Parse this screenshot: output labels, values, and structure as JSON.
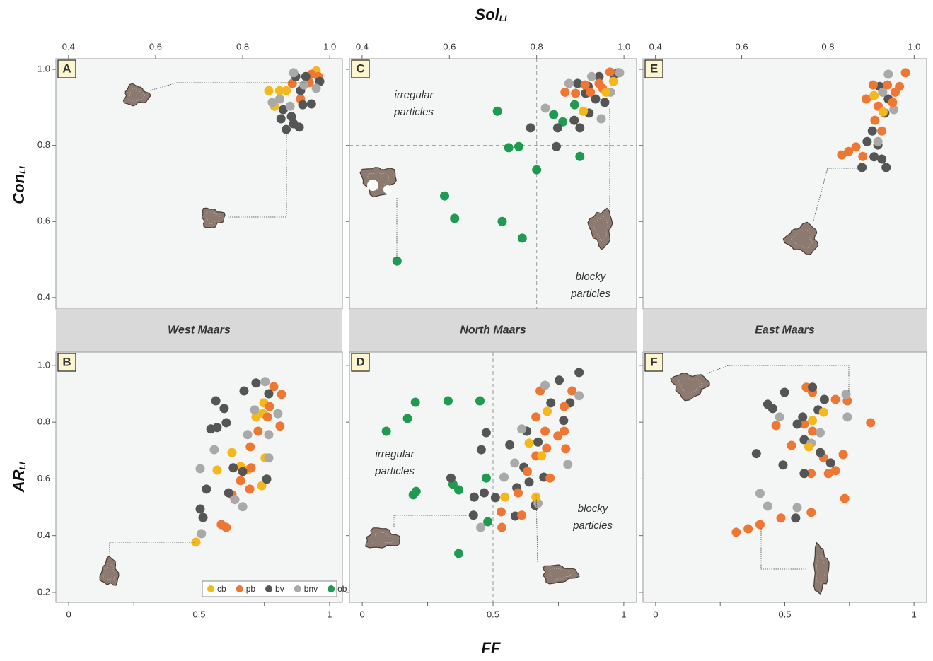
{
  "figure": {
    "x_top": {
      "text": "Sol",
      "sub": "LI"
    },
    "y_top": {
      "text": "Con",
      "sub": "LI"
    },
    "y_bottom": {
      "text": "AR",
      "sub": "LI"
    },
    "x_bottom": "FF"
  },
  "chart_data": [
    {
      "type": "scatter",
      "label": "A",
      "x_axis": "top",
      "y_tick_labels": true,
      "xlim": [
        0.371,
        1.029
      ],
      "ylim": [
        0.37,
        1.028
      ],
      "xticks": [
        0.4,
        0.6,
        0.8,
        {
          "value": 1,
          "label": "1.0"
        }
      ],
      "yticks": [
        0.4,
        0.6,
        0.8,
        {
          "value": 1,
          "label": "1.0"
        }
      ],
      "series": [
        {
          "name": "cb",
          "color": "#f4b81c",
          "x": [
            0.885,
            0.86,
            0.873,
            0.969,
            0.9
          ],
          "values": [
            0.944,
            0.944,
            0.903,
            0.996,
            0.944
          ]
        },
        {
          "name": "pb",
          "color": "#ee7734",
          "x": [
            0.914,
            0.958,
            0.933,
            0.974,
            0.953
          ],
          "values": [
            0.963,
            0.987,
            0.922,
            0.981,
            0.965
          ]
        },
        {
          "name": "bv",
          "color": "#555555",
          "x": [
            0.888,
            0.9,
            0.93,
            0.912,
            0.958,
            0.933,
            0.945,
            0.977,
            0.893,
            0.917,
            0.938,
            0.922
          ],
          "values": [
            0.87,
            0.842,
            0.848,
            0.876,
            0.909,
            0.944,
            0.981,
            0.968,
            0.894,
            0.857,
            0.907,
            0.981
          ]
        },
        {
          "name": "bnv",
          "color": "#a9a9a9",
          "x": [
            0.868,
            0.909,
            0.885,
            0.969,
            0.941,
            0.917
          ],
          "values": [
            0.913,
            0.903,
            0.922,
            0.95,
            0.959,
            0.991
          ]
        }
      ]
    },
    {
      "type": "scatter",
      "label": "C",
      "x_axis": "top",
      "y_tick_labels": false,
      "xlim": [
        0.371,
        1.029
      ],
      "ylim": [
        0.37,
        1.028
      ],
      "xticks": [
        0.4,
        0.6,
        0.8,
        {
          "value": 1,
          "label": "1.0"
        }
      ],
      "yticks": [
        0.4,
        0.6,
        0.8,
        {
          "value": 1,
          "label": "1.0"
        }
      ],
      "ref_lines": {
        "x": [
          0.8
        ],
        "y": [
          0.8
        ]
      },
      "annotations": [
        [
          "irregular",
          "particles"
        ],
        [
          "blocky",
          "particles"
        ]
      ],
      "series": [
        {
          "name": "ob",
          "color": "#1e9b50",
          "x": [
            0.48,
            0.589,
            0.612,
            0.71,
            0.736,
            0.759,
            0.8,
            0.721,
            0.767,
            0.899,
            0.86,
            0.887,
            0.839
          ],
          "values": [
            0.496,
            0.667,
            0.608,
            0.89,
            0.794,
            0.797,
            0.736,
            0.6,
            0.556,
            0.771,
            0.862,
            0.907,
            0.881
          ]
        },
        {
          "name": "bv",
          "color": "#555555",
          "x": [
            0.786,
            0.845,
            0.848,
            0.899,
            0.886,
            0.92,
            0.894,
            0.935,
            0.956,
            0.977,
            0.918,
            0.943,
            0.987,
            0.912
          ],
          "values": [
            0.846,
            0.797,
            0.846,
            0.846,
            0.866,
            0.885,
            0.963,
            0.922,
            0.913,
            0.987,
            0.955,
            0.981,
            0.991,
            0.937
          ]
        },
        {
          "name": "bnv",
          "color": "#a9a9a9",
          "x": [
            0.82,
            0.948,
            0.874,
            0.926,
            0.969,
            0.99
          ],
          "values": [
            0.898,
            0.87,
            0.963,
            0.981,
            0.94,
            0.991
          ]
        },
        {
          "name": "pb",
          "color": "#ee7734",
          "x": [
            0.865,
            0.889,
            0.923,
            0.943,
            0.968,
            0.951,
            0.911
          ],
          "values": [
            0.94,
            0.937,
            0.94,
            0.963,
            0.993,
            0.95,
            0.959
          ]
        },
        {
          "name": "cb",
          "color": "#f4b81c",
          "x": [
            0.907,
            0.976,
            0.959
          ],
          "values": [
            0.89,
            0.968,
            0.94
          ]
        }
      ]
    },
    {
      "type": "scatter",
      "label": "E",
      "x_axis": "top",
      "y_tick_labels": false,
      "xlim": [
        0.371,
        1.029
      ],
      "ylim": [
        0.37,
        1.028
      ],
      "xticks": [
        0.4,
        0.6,
        0.8,
        {
          "value": 1,
          "label": "1.0"
        }
      ],
      "yticks": [
        0.4,
        0.6,
        0.8,
        {
          "value": 1,
          "label": "1.0"
        }
      ],
      "series": [
        {
          "name": "bv",
          "color": "#555555",
          "x": [
            0.879,
            0.935,
            0.903,
            0.916,
            0.932,
            0.92,
            0.94,
            0.891,
            0.907,
            0.925
          ],
          "values": [
            0.742,
            0.742,
            0.838,
            0.801,
            0.885,
            0.955,
            0.922,
            0.81,
            0.77,
            0.764
          ]
        },
        {
          "name": "bnv",
          "color": "#a9a9a9",
          "x": [
            0.916,
            0.953,
            0.927,
            0.94
          ],
          "values": [
            0.81,
            0.894,
            0.94,
            0.987
          ]
        },
        {
          "name": "pb",
          "color": "#ee7734",
          "x": [
            0.832,
            0.848,
            0.865,
            0.881,
            0.889,
            0.905,
            0.938,
            0.956,
            0.98,
            0.909,
            0.925,
            0.95,
            0.966,
            0.917
          ],
          "values": [
            0.775,
            0.784,
            0.796,
            0.771,
            0.922,
            0.959,
            0.959,
            0.94,
            0.991,
            0.866,
            0.838,
            0.913,
            0.955,
            0.903
          ]
        },
        {
          "name": "cb",
          "color": "#f4b81c",
          "x": [
            0.928,
            0.907
          ],
          "values": [
            0.888,
            0.931
          ]
        }
      ]
    },
    {
      "type": "scatter",
      "label": "B",
      "x_axis": "bottom",
      "y_tick_labels": true,
      "strip": "West Maars",
      "legend": "bottom-right",
      "xlim": [
        -0.049,
        1.049
      ],
      "ylim": [
        0.165,
        1.047
      ],
      "xticks": [
        0,
        0.5,
        1
      ],
      "xminor": [
        0.25,
        0.75
      ],
      "yticks": [
        0.2,
        0.4,
        0.6,
        0.8,
        {
          "value": 1,
          "label": "1.0"
        }
      ],
      "series": [
        {
          "name": "cb",
          "color": "#f4b81c",
          "x": [
            0.488,
            0.569,
            0.659,
            0.686,
            0.74,
            0.753,
            0.745,
            0.748,
            0.718,
            0.626
          ],
          "values": [
            0.377,
            0.631,
            0.644,
            0.631,
            0.576,
            0.674,
            0.83,
            0.868,
            0.818,
            0.693
          ]
        },
        {
          "name": "pb",
          "color": "#ee7734",
          "x": [
            0.585,
            0.604,
            0.626,
            0.659,
            0.696,
            0.699,
            0.786,
            0.816,
            0.81,
            0.762,
            0.77,
            0.694,
            0.726
          ],
          "values": [
            0.439,
            0.429,
            0.544,
            0.594,
            0.713,
            0.639,
            0.925,
            0.898,
            0.786,
            0.818,
            0.855,
            0.564,
            0.768
          ]
        },
        {
          "name": "bv",
          "color": "#555555",
          "x": [
            0.504,
            0.515,
            0.528,
            0.545,
            0.569,
            0.564,
            0.596,
            0.604,
            0.613,
            0.631,
            0.672,
            0.718,
            0.767,
            0.759,
            0.667
          ],
          "values": [
            0.494,
            0.464,
            0.564,
            0.776,
            0.781,
            0.875,
            0.848,
            0.798,
            0.551,
            0.639,
            0.91,
            0.938,
            0.9,
            0.599,
            0.626
          ]
        },
        {
          "name": "bnv",
          "color": "#a9a9a9",
          "x": [
            0.504,
            0.509,
            0.558,
            0.637,
            0.667,
            0.686,
            0.753,
            0.767,
            0.802,
            0.767,
            0.713
          ],
          "values": [
            0.636,
            0.407,
            0.703,
            0.527,
            0.502,
            0.756,
            0.943,
            0.756,
            0.83,
            0.674,
            0.843
          ]
        },
        {
          "name": "ob",
          "color": "#1e9b50",
          "x": [],
          "values": []
        }
      ]
    },
    {
      "type": "scatter",
      "label": "D",
      "x_axis": "bottom",
      "y_tick_labels": false,
      "strip": "North Maars",
      "xlim": [
        -0.049,
        1.049
      ],
      "ylim": [
        0.165,
        1.047
      ],
      "xticks": [
        0,
        0.5,
        1
      ],
      "xminor": [
        0.25,
        0.75
      ],
      "yticks": [
        0.2,
        0.4,
        0.6,
        0.8,
        {
          "value": 1,
          "label": "1.0"
        }
      ],
      "ref_lines": {
        "x": [
          0.5
        ],
        "y": []
      },
      "annotations": [
        [
          "irregular",
          "particles"
        ],
        [
          "blocky",
          "particles"
        ]
      ],
      "series": [
        {
          "name": "ob",
          "color": "#1e9b50",
          "x": [
            0.092,
            0.173,
            0.203,
            0.328,
            0.45,
            0.195,
            0.206,
            0.347,
            0.369,
            0.474,
            0.48,
            0.369
          ],
          "values": [
            0.768,
            0.813,
            0.87,
            0.875,
            0.875,
            0.544,
            0.556,
            0.581,
            0.561,
            0.603,
            0.449,
            0.337
          ]
        },
        {
          "name": "bv",
          "color": "#555555",
          "x": [
            0.339,
            0.428,
            0.455,
            0.474,
            0.466,
            0.425,
            0.509,
            0.564,
            0.591,
            0.618,
            0.638,
            0.672,
            0.694,
            0.721,
            0.753,
            0.77,
            0.829,
            0.794,
            0.629,
            0.661,
            0.585
          ],
          "values": [
            0.603,
            0.536,
            0.703,
            0.763,
            0.551,
            0.472,
            0.534,
            0.72,
            0.569,
            0.641,
            0.589,
            0.73,
            0.606,
            0.868,
            0.948,
            0.806,
            0.975,
            0.868,
            0.768,
            0.507,
            0.469
          ]
        },
        {
          "name": "pb",
          "color": "#ee7734",
          "x": [
            0.531,
            0.534,
            0.596,
            0.631,
            0.664,
            0.68,
            0.699,
            0.705,
            0.718,
            0.748,
            0.772,
            0.778,
            0.802,
            0.772,
            0.61,
            0.664
          ],
          "values": [
            0.484,
            0.429,
            0.551,
            0.626,
            0.818,
            0.91,
            0.768,
            0.708,
            0.603,
            0.751,
            0.768,
            0.706,
            0.91,
            0.855,
            0.472,
            0.681
          ]
        },
        {
          "name": "bnv",
          "color": "#a9a9a9",
          "x": [
            0.453,
            0.542,
            0.61,
            0.699,
            0.786,
            0.829,
            0.672,
            0.583
          ],
          "values": [
            0.429,
            0.606,
            0.776,
            0.93,
            0.651,
            0.893,
            0.514,
            0.656
          ]
        },
        {
          "name": "cb",
          "color": "#f4b81c",
          "x": [
            0.545,
            0.664,
            0.638,
            0.707,
            0.686
          ],
          "values": [
            0.536,
            0.536,
            0.726,
            0.838,
            0.681
          ]
        }
      ]
    },
    {
      "type": "scatter",
      "label": "F",
      "x_axis": "bottom",
      "y_tick_labels": false,
      "strip": "East Maars",
      "xlim": [
        -0.049,
        1.049
      ],
      "ylim": [
        0.165,
        1.047
      ],
      "xticks": [
        0,
        0.5,
        1
      ],
      "xminor": [
        0.25,
        0.75
      ],
      "yticks": [
        0.2,
        0.4,
        0.6,
        0.8,
        {
          "value": 1,
          "label": "1.0"
        }
      ],
      "series": [
        {
          "name": "pb",
          "color": "#ee7734",
          "x": [
            0.312,
            0.358,
            0.404,
            0.485,
            0.602,
            0.526,
            0.583,
            0.607,
            0.65,
            0.696,
            0.742,
            0.832,
            0.726,
            0.732,
            0.602,
            0.669,
            0.575,
            0.696,
            0.607,
            0.466
          ],
          "values": [
            0.412,
            0.424,
            0.439,
            0.462,
            0.482,
            0.718,
            0.923,
            0.768,
            0.674,
            0.88,
            0.875,
            0.798,
            0.686,
            0.531,
            0.619,
            0.619,
            0.793,
            0.629,
            0.905,
            0.788
          ]
        },
        {
          "name": "bv",
          "color": "#555555",
          "x": [
            0.39,
            0.434,
            0.493,
            0.499,
            0.542,
            0.569,
            0.575,
            0.607,
            0.653,
            0.575,
            0.629,
            0.637,
            0.677,
            0.548,
            0.453
          ],
          "values": [
            0.689,
            0.863,
            0.649,
            0.905,
            0.462,
            0.818,
            0.738,
            0.923,
            0.88,
            0.619,
            0.843,
            0.693,
            0.656,
            0.793,
            0.848
          ]
        },
        {
          "name": "bnv",
          "color": "#a9a9a9",
          "x": [
            0.404,
            0.434,
            0.548,
            0.737,
            0.742,
            0.637,
            0.602,
            0.48
          ],
          "values": [
            0.549,
            0.504,
            0.499,
            0.898,
            0.818,
            0.763,
            0.726,
            0.818
          ]
        },
        {
          "name": "cb",
          "color": "#f4b81c",
          "x": [
            0.65,
            0.593,
            0.607
          ],
          "values": [
            0.835,
            0.713,
            0.806
          ]
        }
      ]
    }
  ]
}
